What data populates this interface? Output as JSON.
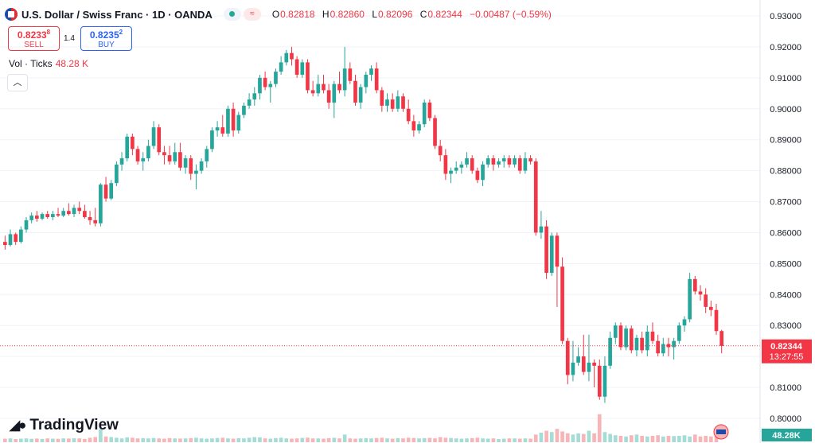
{
  "header": {
    "symbol": "U.S. Dollar / Swiss Franc · 1D · OANDA",
    "ohlc": {
      "o_label": "O",
      "o": "0.82818",
      "h_label": "H",
      "h": "0.82860",
      "l_label": "L",
      "l": "0.82096",
      "c_label": "C",
      "c": "0.82344",
      "change": "−0.00487 (−0.59%)"
    },
    "indicator_badge": "≈"
  },
  "trade": {
    "sell_price": "0.8233",
    "sell_price_sup": "8",
    "sell_label": "SELL",
    "spread": "1.4",
    "buy_price": "0.8235",
    "buy_price_sup": "2",
    "buy_label": "BUY"
  },
  "volume_legend": {
    "label": "Vol · Ticks",
    "value": "48.28 K"
  },
  "logo": "TradingView",
  "colors": {
    "up": "#26a69a",
    "down": "#f23645",
    "up_vol": "#a6dcd6",
    "down_vol": "#f8b5b8",
    "grid": "#f0f3fa",
    "price_line": "#f23645"
  },
  "price_axis": {
    "ticks": [
      "0.93000",
      "0.92000",
      "0.91000",
      "0.90000",
      "0.89000",
      "0.88000",
      "0.87000",
      "0.86000",
      "0.85000",
      "0.84000",
      "0.83000",
      "0.82000",
      "0.81000",
      "0.80000"
    ],
    "last_price_label": "0.82344",
    "countdown": "13:27:55",
    "volume_label": "48.28K"
  },
  "chart_data": {
    "type": "candlestick",
    "ylim": [
      0.7975,
      0.9325
    ],
    "last_close": 0.82344,
    "candles": [
      [
        0.857,
        0.859,
        0.8545,
        0.856
      ],
      [
        0.856,
        0.861,
        0.8555,
        0.8595
      ],
      [
        0.8595,
        0.86,
        0.856,
        0.857
      ],
      [
        0.857,
        0.862,
        0.8565,
        0.861
      ],
      [
        0.861,
        0.865,
        0.86,
        0.864
      ],
      [
        0.864,
        0.8665,
        0.863,
        0.8655
      ],
      [
        0.8655,
        0.867,
        0.8635,
        0.8645
      ],
      [
        0.8645,
        0.8665,
        0.864,
        0.866
      ],
      [
        0.866,
        0.867,
        0.8645,
        0.865
      ],
      [
        0.865,
        0.867,
        0.864,
        0.866
      ],
      [
        0.866,
        0.868,
        0.865,
        0.8655
      ],
      [
        0.8655,
        0.868,
        0.865,
        0.867
      ],
      [
        0.867,
        0.8695,
        0.8655,
        0.866
      ],
      [
        0.866,
        0.869,
        0.865,
        0.868
      ],
      [
        0.868,
        0.87,
        0.866,
        0.867
      ],
      [
        0.867,
        0.869,
        0.8645,
        0.865
      ],
      [
        0.865,
        0.867,
        0.8625,
        0.864
      ],
      [
        0.864,
        0.868,
        0.862,
        0.863
      ],
      [
        0.863,
        0.876,
        0.862,
        0.8755
      ],
      [
        0.8755,
        0.878,
        0.87,
        0.871
      ],
      [
        0.871,
        0.877,
        0.8705,
        0.876
      ],
      [
        0.876,
        0.883,
        0.875,
        0.882
      ],
      [
        0.882,
        0.886,
        0.88,
        0.884
      ],
      [
        0.884,
        0.892,
        0.883,
        0.891
      ],
      [
        0.891,
        0.892,
        0.885,
        0.887
      ],
      [
        0.887,
        0.888,
        0.882,
        0.883
      ],
      [
        0.883,
        0.886,
        0.88,
        0.884
      ],
      [
        0.884,
        0.89,
        0.883,
        0.888
      ],
      [
        0.888,
        0.896,
        0.887,
        0.894
      ],
      [
        0.894,
        0.895,
        0.885,
        0.886
      ],
      [
        0.886,
        0.888,
        0.882,
        0.885
      ],
      [
        0.885,
        0.888,
        0.882,
        0.883
      ],
      [
        0.883,
        0.889,
        0.882,
        0.886
      ],
      [
        0.886,
        0.889,
        0.88,
        0.881
      ],
      [
        0.881,
        0.885,
        0.879,
        0.884
      ],
      [
        0.884,
        0.885,
        0.877,
        0.879
      ],
      [
        0.879,
        0.882,
        0.874,
        0.88
      ],
      [
        0.88,
        0.884,
        0.879,
        0.883
      ],
      [
        0.883,
        0.888,
        0.881,
        0.887
      ],
      [
        0.887,
        0.894,
        0.886,
        0.893
      ],
      [
        0.893,
        0.896,
        0.891,
        0.894
      ],
      [
        0.894,
        0.898,
        0.891,
        0.892
      ],
      [
        0.892,
        0.901,
        0.891,
        0.9
      ],
      [
        0.9,
        0.902,
        0.891,
        0.893
      ],
      [
        0.893,
        0.899,
        0.892,
        0.898
      ],
      [
        0.898,
        0.902,
        0.897,
        0.901
      ],
      [
        0.901,
        0.905,
        0.9,
        0.903
      ],
      [
        0.903,
        0.907,
        0.901,
        0.905
      ],
      [
        0.905,
        0.911,
        0.903,
        0.91
      ],
      [
        0.91,
        0.912,
        0.906,
        0.907
      ],
      [
        0.907,
        0.909,
        0.902,
        0.908
      ],
      [
        0.908,
        0.913,
        0.907,
        0.912
      ],
      [
        0.912,
        0.917,
        0.911,
        0.915
      ],
      [
        0.915,
        0.919,
        0.914,
        0.918
      ],
      [
        0.918,
        0.92,
        0.914,
        0.916
      ],
      [
        0.916,
        0.917,
        0.91,
        0.911
      ],
      [
        0.911,
        0.916,
        0.91,
        0.915
      ],
      [
        0.915,
        0.916,
        0.905,
        0.906
      ],
      [
        0.906,
        0.909,
        0.904,
        0.905
      ],
      [
        0.905,
        0.911,
        0.904,
        0.908
      ],
      [
        0.908,
        0.911,
        0.905,
        0.906
      ],
      [
        0.906,
        0.908,
        0.9,
        0.902
      ],
      [
        0.902,
        0.909,
        0.897,
        0.908
      ],
      [
        0.908,
        0.912,
        0.905,
        0.906
      ],
      [
        0.906,
        0.92,
        0.904,
        0.913
      ],
      [
        0.913,
        0.915,
        0.908,
        0.909
      ],
      [
        0.909,
        0.911,
        0.901,
        0.902
      ],
      [
        0.902,
        0.908,
        0.9,
        0.907
      ],
      [
        0.907,
        0.912,
        0.905,
        0.911
      ],
      [
        0.911,
        0.914,
        0.909,
        0.913
      ],
      [
        0.913,
        0.915,
        0.905,
        0.906
      ],
      [
        0.906,
        0.907,
        0.899,
        0.901
      ],
      [
        0.901,
        0.905,
        0.899,
        0.903
      ],
      [
        0.903,
        0.905,
        0.899,
        0.9
      ],
      [
        0.9,
        0.906,
        0.899,
        0.904
      ],
      [
        0.904,
        0.905,
        0.899,
        0.9
      ],
      [
        0.9,
        0.903,
        0.895,
        0.896
      ],
      [
        0.896,
        0.898,
        0.891,
        0.893
      ],
      [
        0.893,
        0.896,
        0.892,
        0.895
      ],
      [
        0.895,
        0.903,
        0.894,
        0.902
      ],
      [
        0.902,
        0.903,
        0.896,
        0.897
      ],
      [
        0.897,
        0.898,
        0.887,
        0.888
      ],
      [
        0.888,
        0.89,
        0.883,
        0.885
      ],
      [
        0.885,
        0.887,
        0.877,
        0.879
      ],
      [
        0.879,
        0.881,
        0.876,
        0.88
      ],
      [
        0.88,
        0.883,
        0.879,
        0.881
      ],
      [
        0.881,
        0.883,
        0.879,
        0.882
      ],
      [
        0.882,
        0.886,
        0.881,
        0.884
      ],
      [
        0.884,
        0.885,
        0.879,
        0.88
      ],
      [
        0.88,
        0.881,
        0.876,
        0.877
      ],
      [
        0.877,
        0.883,
        0.875,
        0.882
      ],
      [
        0.882,
        0.885,
        0.881,
        0.884
      ],
      [
        0.884,
        0.885,
        0.88,
        0.882
      ],
      [
        0.882,
        0.884,
        0.881,
        0.883
      ],
      [
        0.883,
        0.885,
        0.881,
        0.884
      ],
      [
        0.884,
        0.885,
        0.881,
        0.882
      ],
      [
        0.882,
        0.885,
        0.881,
        0.884
      ],
      [
        0.884,
        0.885,
        0.879,
        0.88
      ],
      [
        0.88,
        0.886,
        0.879,
        0.884
      ],
      [
        0.884,
        0.885,
        0.882,
        0.883
      ],
      [
        0.883,
        0.884,
        0.859,
        0.86
      ],
      [
        0.86,
        0.867,
        0.858,
        0.862
      ],
      [
        0.862,
        0.864,
        0.845,
        0.847
      ],
      [
        0.847,
        0.86,
        0.846,
        0.859
      ],
      [
        0.859,
        0.86,
        0.836,
        0.849
      ],
      [
        0.849,
        0.852,
        0.824,
        0.825
      ],
      [
        0.825,
        0.826,
        0.811,
        0.814
      ],
      [
        0.814,
        0.825,
        0.812,
        0.818
      ],
      [
        0.818,
        0.823,
        0.817,
        0.82
      ],
      [
        0.82,
        0.827,
        0.814,
        0.815
      ],
      [
        0.815,
        0.827,
        0.812,
        0.818
      ],
      [
        0.818,
        0.819,
        0.81,
        0.817
      ],
      [
        0.817,
        0.819,
        0.806,
        0.807
      ],
      [
        0.807,
        0.82,
        0.805,
        0.817
      ],
      [
        0.817,
        0.828,
        0.816,
        0.826
      ],
      [
        0.826,
        0.831,
        0.824,
        0.83
      ],
      [
        0.83,
        0.831,
        0.822,
        0.823
      ],
      [
        0.823,
        0.83,
        0.822,
        0.829
      ],
      [
        0.829,
        0.83,
        0.821,
        0.822
      ],
      [
        0.822,
        0.827,
        0.82,
        0.826
      ],
      [
        0.826,
        0.828,
        0.821,
        0.822
      ],
      [
        0.822,
        0.83,
        0.82,
        0.828
      ],
      [
        0.828,
        0.831,
        0.824,
        0.825
      ],
      [
        0.825,
        0.827,
        0.82,
        0.821
      ],
      [
        0.821,
        0.826,
        0.82,
        0.824
      ],
      [
        0.824,
        0.826,
        0.82,
        0.823
      ],
      [
        0.823,
        0.826,
        0.819,
        0.825
      ],
      [
        0.825,
        0.831,
        0.824,
        0.83
      ],
      [
        0.83,
        0.833,
        0.828,
        0.832
      ],
      [
        0.832,
        0.847,
        0.831,
        0.845
      ],
      [
        0.845,
        0.846,
        0.84,
        0.841
      ],
      [
        0.841,
        0.843,
        0.838,
        0.84
      ],
      [
        0.84,
        0.842,
        0.834,
        0.836
      ],
      [
        0.836,
        0.838,
        0.833,
        0.835
      ],
      [
        0.835,
        0.837,
        0.827,
        0.8282
      ],
      [
        0.8282,
        0.8286,
        0.821,
        0.8234
      ]
    ],
    "volume_relative": [
      0.28,
      0.3,
      0.25,
      0.28,
      0.3,
      0.27,
      0.29,
      0.26,
      0.3,
      0.28,
      0.27,
      0.3,
      0.29,
      0.31,
      0.3,
      0.26,
      0.35,
      0.4,
      1.0,
      0.45,
      0.4,
      0.35,
      0.3,
      0.38,
      0.35,
      0.3,
      0.32,
      0.3,
      0.33,
      0.3,
      0.28,
      0.32,
      0.3,
      0.29,
      0.3,
      0.32,
      0.35,
      0.3,
      0.28,
      0.3,
      0.33,
      0.35,
      0.3,
      0.28,
      0.32,
      0.3,
      0.35,
      0.4,
      0.38,
      0.3,
      0.28,
      0.32,
      0.35,
      0.3,
      0.28,
      0.3,
      0.34,
      0.36,
      0.3,
      0.3,
      0.28,
      0.32,
      0.35,
      0.3,
      0.6,
      0.3,
      0.28,
      0.3,
      0.32,
      0.3,
      0.33,
      0.35,
      0.3,
      0.28,
      0.32,
      0.3,
      0.35,
      0.33,
      0.3,
      0.32,
      0.34,
      0.3,
      0.4,
      0.35,
      0.33,
      0.3,
      0.28,
      0.3,
      0.32,
      0.35,
      0.3,
      0.28,
      0.3,
      0.25,
      0.28,
      0.3,
      0.3,
      0.28,
      0.3,
      0.28,
      0.6,
      0.75,
      0.9,
      0.8,
      1.05,
      0.85,
      0.7,
      0.6,
      0.7,
      0.65,
      0.9,
      0.7,
      2.2,
      0.8,
      0.65,
      0.55,
      0.5,
      0.45,
      0.55,
      0.6,
      0.5,
      0.45,
      0.5,
      0.55,
      0.45,
      0.5,
      0.48,
      0.5,
      0.55,
      0.45,
      0.6,
      0.45,
      0.5,
      0.45,
      0.5
    ]
  }
}
